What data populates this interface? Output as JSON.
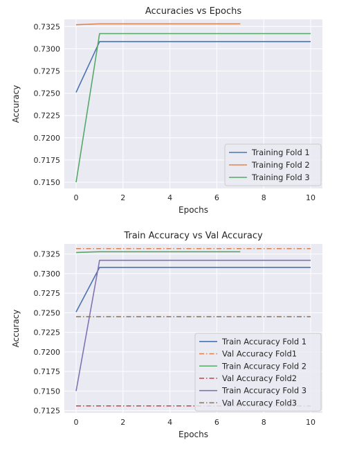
{
  "chart_data": [
    {
      "type": "line",
      "title": "Accuracies vs Epochs",
      "xlabel": "Epochs",
      "ylabel": "Accuracy",
      "xlim": [
        -0.5,
        10.5
      ],
      "ylim": [
        0.7143,
        0.7333
      ],
      "xticks": [
        0,
        2,
        4,
        6,
        8,
        10
      ],
      "xtick_labels": [
        "0",
        "2",
        "4",
        "6",
        "8",
        "10"
      ],
      "yticks": [
        0.715,
        0.7175,
        0.72,
        0.7225,
        0.725,
        0.7275,
        0.73,
        0.7325
      ],
      "ytick_labels": [
        "0.7150",
        "0.7175",
        "0.7200",
        "0.7225",
        "0.7250",
        "0.7275",
        "0.7300",
        "0.7325"
      ],
      "grid": true,
      "legend_position": "lower-right",
      "series": [
        {
          "name": "Training Fold 1",
          "color": "#4c72b0",
          "dash": "solid",
          "x": [
            0,
            1,
            2,
            3,
            4,
            5,
            6,
            7,
            8,
            9,
            10
          ],
          "y": [
            0.7251,
            0.7308,
            0.7308,
            0.7308,
            0.7308,
            0.7308,
            0.7308,
            0.7308,
            0.7308,
            0.7308,
            0.7308
          ]
        },
        {
          "name": "Training Fold 2",
          "color": "#dd8452",
          "dash": "solid",
          "x": [
            0,
            1,
            2,
            3,
            4,
            5,
            6,
            7
          ],
          "y": [
            0.7327,
            0.7328,
            0.7328,
            0.7328,
            0.7328,
            0.7328,
            0.7328,
            0.7328
          ]
        },
        {
          "name": "Training Fold 3",
          "color": "#55a868",
          "dash": "solid",
          "x": [
            0,
            1,
            2,
            3,
            4,
            5,
            6,
            7,
            8,
            9,
            10
          ],
          "y": [
            0.715,
            0.7317,
            0.7317,
            0.7317,
            0.7317,
            0.7317,
            0.7317,
            0.7317,
            0.7317,
            0.7317,
            0.7317
          ]
        }
      ]
    },
    {
      "type": "line",
      "title": "Train Accuracy vs Val Accuracy",
      "xlabel": "Epochs",
      "ylabel": "Accuracy",
      "xlim": [
        -0.5,
        10.5
      ],
      "ylim": [
        0.7122,
        0.7338
      ],
      "xticks": [
        0,
        2,
        4,
        6,
        8,
        10
      ],
      "xtick_labels": [
        "0",
        "2",
        "4",
        "6",
        "8",
        "10"
      ],
      "yticks": [
        0.7125,
        0.715,
        0.7175,
        0.72,
        0.7225,
        0.725,
        0.7275,
        0.73,
        0.7325
      ],
      "ytick_labels": [
        "0.7125",
        "0.7150",
        "0.7175",
        "0.7200",
        "0.7225",
        "0.7250",
        "0.7275",
        "0.7300",
        "0.7325"
      ],
      "grid": true,
      "legend_position": "lower-right",
      "series": [
        {
          "name": "Train Accuracy Fold 1",
          "color": "#4c72b0",
          "dash": "solid",
          "x": [
            0,
            1,
            2,
            3,
            4,
            5,
            6,
            7,
            8,
            9,
            10
          ],
          "y": [
            0.7251,
            0.7308,
            0.7308,
            0.7308,
            0.7308,
            0.7308,
            0.7308,
            0.7308,
            0.7308,
            0.7308,
            0.7308
          ]
        },
        {
          "name": "Val Accuracy Fold1",
          "color": "#dd8452",
          "dash": "dashdot",
          "x": [
            0,
            10
          ],
          "y": [
            0.7332,
            0.7332
          ]
        },
        {
          "name": "Train Accuracy Fold 2",
          "color": "#55a868",
          "dash": "solid",
          "x": [
            0,
            1,
            2,
            3,
            4,
            5,
            6,
            7
          ],
          "y": [
            0.7327,
            0.7328,
            0.7328,
            0.7328,
            0.7328,
            0.7328,
            0.7328,
            0.7328
          ]
        },
        {
          "name": "Val Accuracy Fold2",
          "color": "#c44e52",
          "dash": "dashdot",
          "x": [
            0,
            10
          ],
          "y": [
            0.7131,
            0.7131
          ]
        },
        {
          "name": "Train Accuracy Fold 3",
          "color": "#8172b3",
          "dash": "solid",
          "x": [
            0,
            1,
            2,
            3,
            4,
            5,
            6,
            7,
            8,
            9,
            10
          ],
          "y": [
            0.715,
            0.7317,
            0.7317,
            0.7317,
            0.7317,
            0.7317,
            0.7317,
            0.7317,
            0.7317,
            0.7317,
            0.7317
          ]
        },
        {
          "name": "Val Accuracy Fold3",
          "color": "#937860",
          "dash": "dashdot",
          "x": [
            0,
            10
          ],
          "y": [
            0.7245,
            0.7245
          ]
        }
      ]
    }
  ]
}
